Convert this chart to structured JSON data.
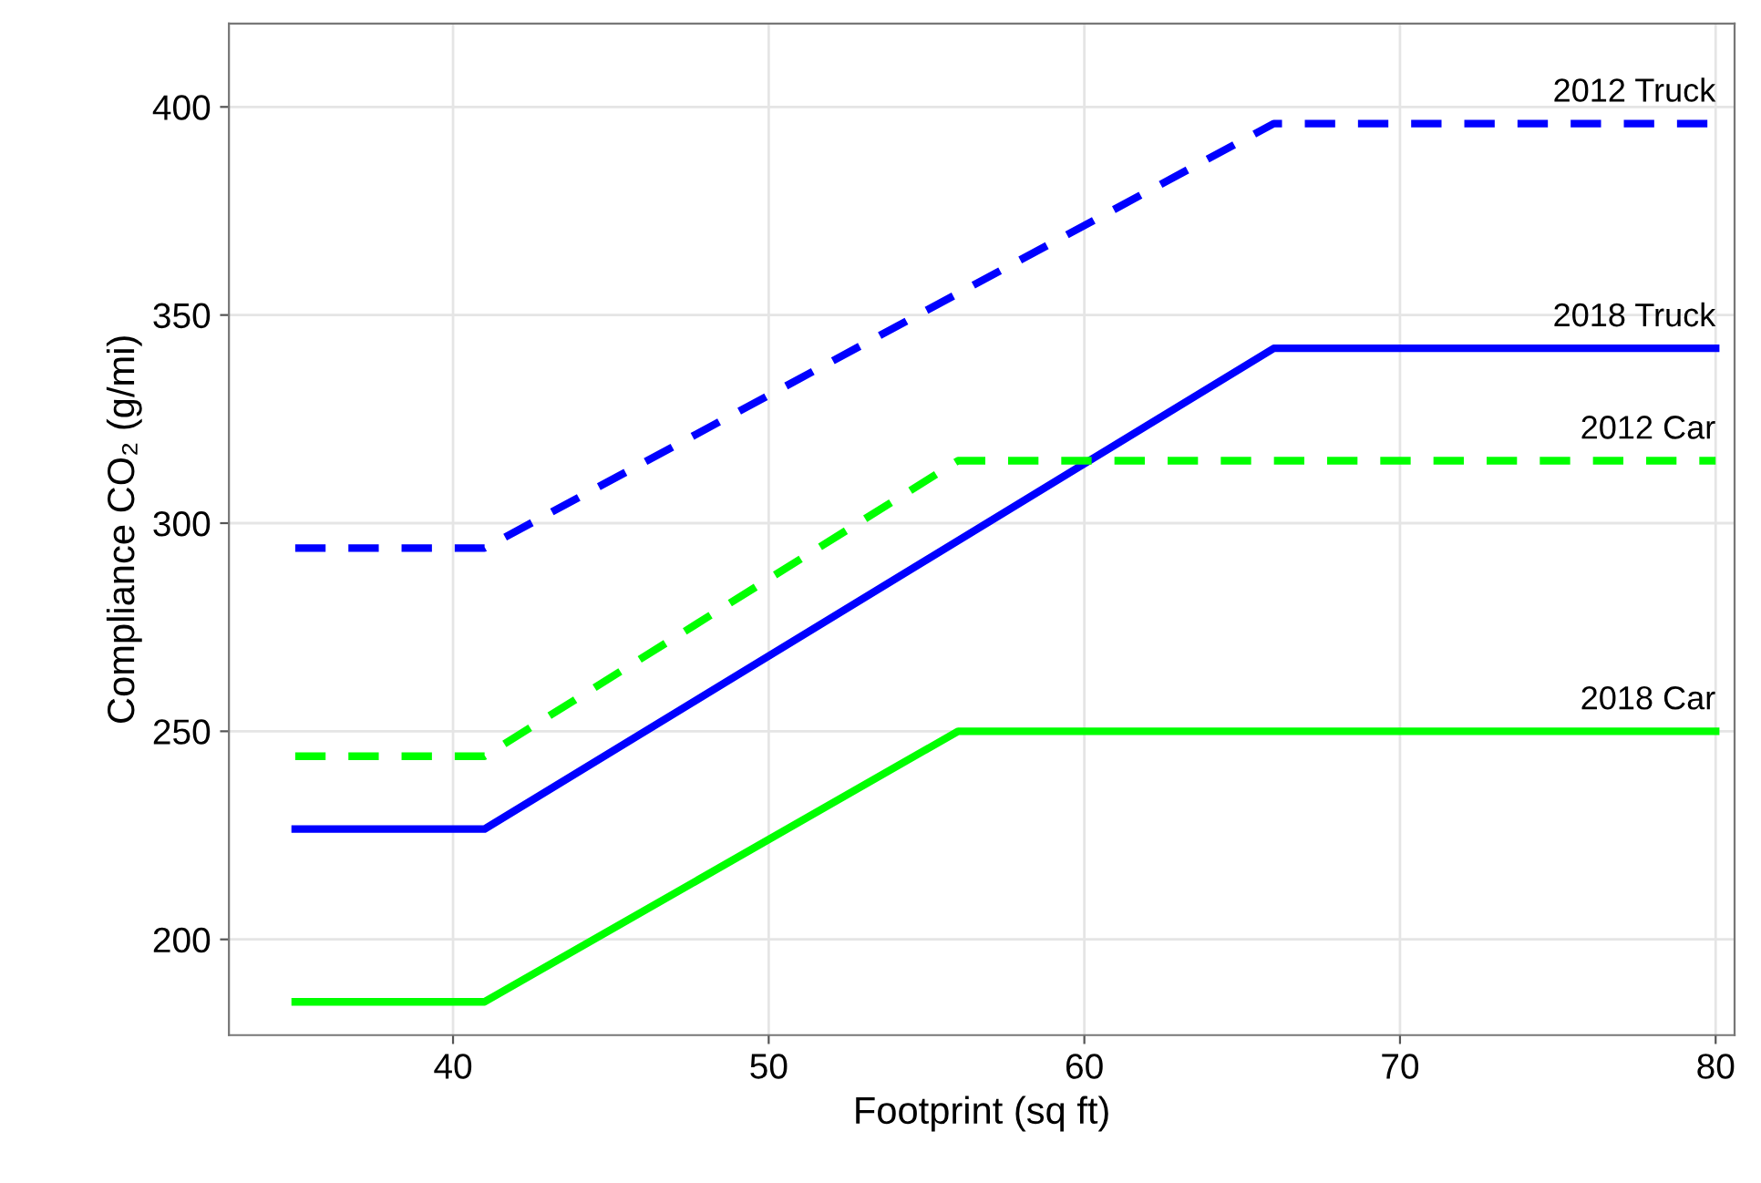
{
  "chart_data": {
    "type": "line",
    "xlabel": "Footprint (sq ft)",
    "ylabel": "Compliance CO₂ (g/mi)",
    "xlim": [
      32.9,
      80.6
    ],
    "ylim": [
      177,
      420
    ],
    "xticks": [
      40,
      50,
      60,
      70,
      80
    ],
    "yticks": [
      200,
      250,
      300,
      350,
      400
    ],
    "grid": true,
    "legend": false,
    "series": [
      {
        "name": "2012 Truck",
        "color": "#0000ff",
        "line_style": "dashed",
        "x": [
          35,
          41,
          66,
          80
        ],
        "values": [
          294,
          294,
          396,
          396
        ]
      },
      {
        "name": "2018 Truck",
        "color": "#0000ff",
        "line_style": "solid",
        "x": [
          35,
          41,
          66,
          80
        ],
        "values": [
          226.5,
          226.5,
          342,
          342
        ]
      },
      {
        "name": "2012 Car",
        "color": "#00ff00",
        "line_style": "dashed",
        "x": [
          35,
          41,
          56,
          80
        ],
        "values": [
          244,
          244,
          315,
          315
        ]
      },
      {
        "name": "2018 Car",
        "color": "#00ff00",
        "line_style": "solid",
        "x": [
          35,
          41,
          56,
          80
        ],
        "values": [
          185,
          185,
          250,
          250
        ]
      }
    ]
  }
}
